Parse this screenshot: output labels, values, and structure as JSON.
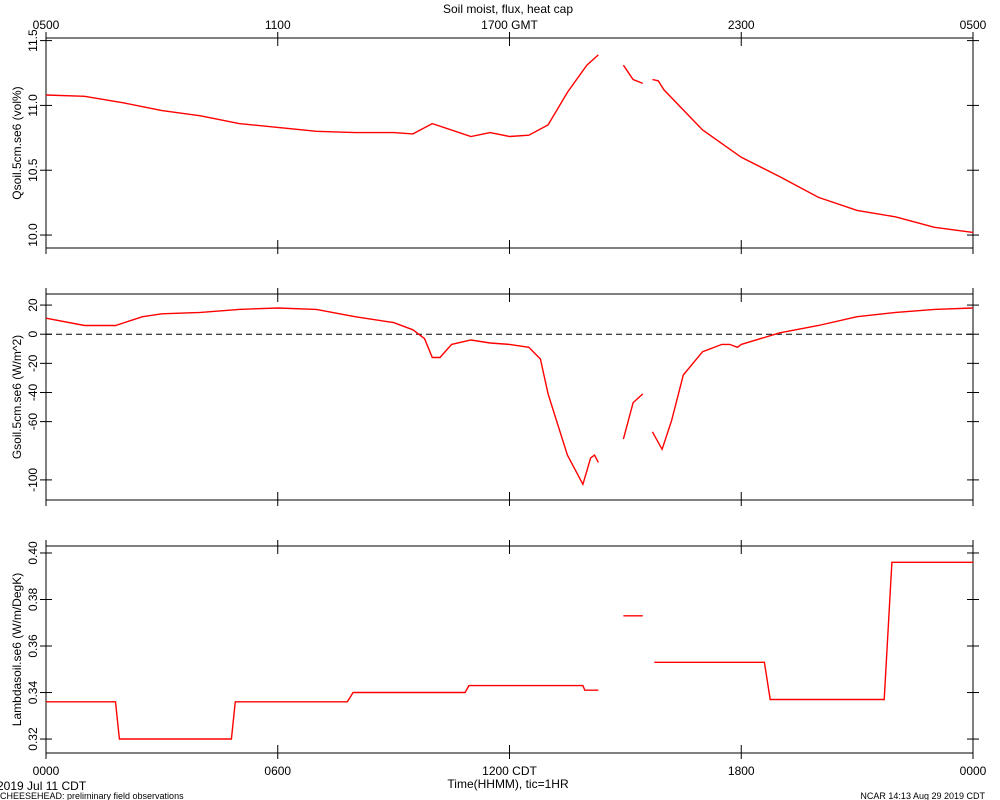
{
  "title": "Soil moist, flux, heat cap",
  "x_label": "Time(HHMM), tic=1HR",
  "footer": {
    "date": "2019 Jul 11 CDT",
    "project": "CHEESEHEAD: preliminary field observations",
    "credit": "NCAR 14:13 Aug 29 2019 CDT"
  },
  "xlim": [
    0,
    24
  ],
  "xticks": [
    {
      "value": 0,
      "label": "0000"
    },
    {
      "value": 6,
      "label": "0600"
    },
    {
      "value": 12,
      "label": "1200 CDT"
    },
    {
      "value": 18,
      "label": "1800"
    },
    {
      "value": 24,
      "label": "0000"
    }
  ],
  "top_xticks": [
    {
      "value": 0,
      "label": "0500"
    },
    {
      "value": 6,
      "label": "1100"
    },
    {
      "value": 12,
      "label": "1700 GMT"
    },
    {
      "value": 18,
      "label": "2300"
    },
    {
      "value": 24,
      "label": "0500"
    }
  ],
  "chart_data": [
    {
      "type": "line",
      "ylabel": "Qsoil.5cm.se6 (vol%)",
      "color": "#ff0000",
      "ylim": [
        9.9,
        11.52
      ],
      "yticks": [
        {
          "value": 10,
          "label": "10.0"
        },
        10.5,
        {
          "value": 11,
          "label": "11.0"
        },
        11.5
      ],
      "x": [
        0,
        1,
        2,
        3,
        4,
        5,
        6,
        7,
        8,
        9,
        9.5,
        10,
        11,
        11.5,
        12,
        12.5,
        13,
        13.5,
        14,
        14.3,
        14.6,
        14.95,
        15.2,
        15.45,
        15.55,
        15.7,
        15.85,
        16,
        17,
        18,
        19,
        20,
        21,
        22,
        23,
        24
      ],
      "values": [
        11.08,
        11.07,
        11.02,
        10.96,
        10.92,
        10.86,
        10.83,
        10.8,
        10.79,
        10.79,
        10.78,
        10.86,
        10.76,
        10.79,
        10.76,
        10.77,
        10.85,
        11.1,
        11.31,
        11.39,
        null,
        11.31,
        11.2,
        11.17,
        null,
        11.2,
        11.19,
        11.12,
        10.81,
        10.6,
        10.45,
        10.29,
        10.19,
        10.14,
        10.06,
        10.02
      ]
    },
    {
      "type": "line",
      "ylabel": "Gsoil.5cm.se6 (W/m^2)",
      "color": "#ff0000",
      "ylim": [
        -113.8,
        27.6
      ],
      "hline": 0,
      "yticks": [
        -100,
        -60,
        -40,
        -20,
        0,
        20
      ],
      "x": [
        0,
        1,
        1.8,
        2.5,
        3,
        4,
        5,
        6,
        7,
        8,
        9,
        9.5,
        9.8,
        10,
        10.2,
        10.5,
        11,
        11.5,
        12,
        12.5,
        12.8,
        13,
        13.5,
        13.9,
        14.1,
        14.2,
        14.3,
        14.6,
        14.95,
        15.2,
        15.45,
        15.55,
        15.7,
        15.95,
        16.2,
        16.5,
        17,
        17.5,
        17.7,
        17.9,
        18,
        18.5,
        19,
        20,
        21,
        22,
        23,
        24
      ],
      "values": [
        11,
        6,
        6,
        12,
        14,
        15,
        17,
        18,
        17,
        12,
        8,
        3,
        -3,
        -16,
        -16,
        -7,
        -4,
        -6,
        -7,
        -9,
        -17,
        -41,
        -83,
        -103,
        -85,
        -83,
        -88,
        null,
        -72,
        -47,
        -41,
        null,
        -67,
        -79,
        -59,
        -28,
        -12,
        -7,
        -7,
        -9,
        -7,
        -3,
        1,
        6,
        12,
        15,
        17,
        18
      ]
    },
    {
      "type": "line",
      "ylabel": "Lambdasoil.se6 (W/m/DegK)",
      "color": "#ff0000",
      "ylim": [
        0.314,
        0.403
      ],
      "yticks": [
        0.32,
        0.34,
        0.36,
        0.38,
        {
          "value": 0.4,
          "label": "0.40"
        }
      ],
      "x": [
        0,
        1.8,
        1.9,
        4.8,
        4.9,
        7.8,
        7.95,
        10.85,
        10.95,
        13.9,
        13.95,
        14.3,
        14.6,
        14.95,
        15.45,
        15.6,
        15.75,
        18.6,
        18.75,
        21.7,
        21.9,
        24
      ],
      "values": [
        0.336,
        0.336,
        0.32,
        0.32,
        0.336,
        0.336,
        0.34,
        0.34,
        0.343,
        0.343,
        0.341,
        0.341,
        null,
        0.373,
        0.373,
        null,
        0.353,
        0.353,
        0.337,
        0.337,
        0.396,
        0.396
      ]
    }
  ]
}
